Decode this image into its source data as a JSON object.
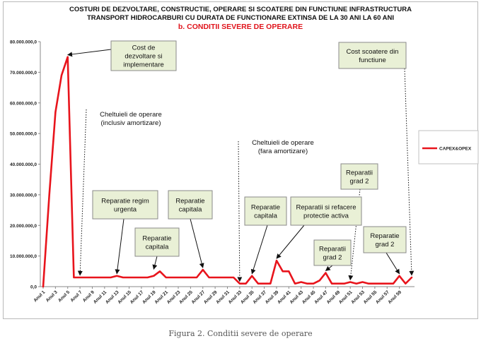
{
  "chart_data": {
    "type": "line",
    "title_line1": "COSTURI DE DEZVOLTARE, CONSTRUCTIE, OPERARE SI SCOATERE DIN FUNCTIUNE INFRASTRUCTURA",
    "title_line2": "TRANSPORT HIDROCARBURI CU DURATA DE FUNCTIONARE EXTINSA DE LA 30 ANI LA 60 ANI",
    "subtitle": "b. CONDITII SEVERE DE OPERARE",
    "xlabel": "",
    "ylabel": "",
    "ylim": [
      0,
      80000000
    ],
    "yticks": [
      "0,0",
      "10.000.000,0",
      "20.000.000,0",
      "30.000.000,0",
      "40.000.000,0",
      "50.000.000,0",
      "60.000.000,0",
      "70.000.000,0",
      "80.000.000,0"
    ],
    "xticks": [
      "Anul 1",
      "Anul 3",
      "Anul 5",
      "Anul 7",
      "Anul 9",
      "Anul 11",
      "Anul 13",
      "Anul 15",
      "Anul 17",
      "Anul 19",
      "Anul 21",
      "Anul 23",
      "Anul 25",
      "Anul 27",
      "Anul 29",
      "Anul 31",
      "Anul 33",
      "Anul 35",
      "Anul 37",
      "Anul 39",
      "Anul 41",
      "Anul 43",
      "Anul 45",
      "Anul 47",
      "Anul 49",
      "Anul 51",
      "Anul 53",
      "Anul 55",
      "Anul 57",
      "Anul 59"
    ],
    "grid": false,
    "legend_position": "right",
    "series": [
      {
        "name": "CAPEX&OPEX",
        "color": "#e8141c",
        "x": [
          1,
          2,
          3,
          4,
          5,
          6,
          7,
          8,
          9,
          10,
          11,
          12,
          13,
          14,
          15,
          16,
          17,
          18,
          19,
          20,
          21,
          22,
          23,
          24,
          25,
          26,
          27,
          28,
          29,
          30,
          31,
          32,
          33,
          34,
          35,
          36,
          37,
          38,
          39,
          40,
          41,
          42,
          43,
          44,
          45,
          46,
          47,
          48,
          49,
          50,
          51,
          52,
          53,
          54,
          55,
          56,
          57,
          58,
          59,
          60,
          61
        ],
        "values": [
          0,
          30000000,
          57000000,
          69000000,
          75000000,
          3000000,
          3000000,
          3000000,
          3000000,
          3000000,
          3000000,
          3000000,
          3500000,
          3000000,
          3000000,
          3000000,
          3000000,
          3000000,
          3500000,
          5000000,
          3000000,
          3000000,
          3000000,
          3000000,
          3000000,
          3000000,
          5500000,
          3000000,
          3000000,
          3000000,
          3000000,
          3000000,
          1000000,
          1000000,
          3500000,
          1000000,
          1000000,
          1000000,
          8500000,
          5000000,
          5000000,
          1000000,
          1500000,
          1000000,
          1000000,
          2000000,
          4500000,
          1000000,
          1000000,
          1000000,
          1500000,
          1000000,
          1500000,
          1000000,
          1000000,
          1000000,
          1000000,
          1000000,
          3500000,
          1000000,
          3000000
        ]
      }
    ],
    "annotations": [
      {
        "text": "Cost de dezvoltare si implementare",
        "lines": [
          "Cost de",
          "dezvoltare si",
          "implementare"
        ],
        "target_x": 5,
        "target_y": 75000000
      },
      {
        "text": "Cheltuieli de operare (inclusiv amortizare)",
        "lines": [
          "Cheltuieli de operare",
          "(inclusiv amortizare)"
        ],
        "target_x": 7,
        "target_y": 3000000
      },
      {
        "text": "Reparatie regim urgenta",
        "lines": [
          "Reparatie regim",
          "urgenta"
        ],
        "target_x": 13,
        "target_y": 3500000
      },
      {
        "text": "Reparatie capitala",
        "lines": [
          "Reparatie",
          "capitala"
        ],
        "target_x": 19,
        "target_y": 5000000
      },
      {
        "text": "Reparatie capitala",
        "lines": [
          "Reparatie",
          "capitala"
        ],
        "target_x": 27,
        "target_y": 5500000
      },
      {
        "text": "Cheltuieli de operare (fara amortizare)",
        "lines": [
          "Cheltuieli de operare",
          "(fara amortizare)"
        ],
        "target_x": 33,
        "target_y": 1000000
      },
      {
        "text": "Reparatie capitala",
        "lines": [
          "Reparatie",
          "capitala"
        ],
        "target_x": 35,
        "target_y": 3500000
      },
      {
        "text": "Reparatii si refacere protectie activa",
        "lines": [
          "Reparatii si refacere",
          "protectie activa"
        ],
        "target_x": 39,
        "target_y": 8500000
      },
      {
        "text": "Reparatii grad 2",
        "lines": [
          "Reparatii",
          "grad 2"
        ],
        "target_x": 47,
        "target_y": 4500000
      },
      {
        "text": "Reparatii grad 2",
        "lines": [
          "Reparatii",
          "grad 2"
        ],
        "target_x": 51,
        "target_y": 1500000
      },
      {
        "text": "Reparatie grad 2",
        "lines": [
          "Reparatie",
          "grad 2"
        ],
        "target_x": 59,
        "target_y": 3500000
      },
      {
        "text": "Cost scoatere din functiune",
        "lines": [
          "Cost scoatere din",
          "functiune"
        ],
        "target_x": 61,
        "target_y": 3000000
      }
    ]
  },
  "caption": "Figura 2. Conditii severe de operare"
}
